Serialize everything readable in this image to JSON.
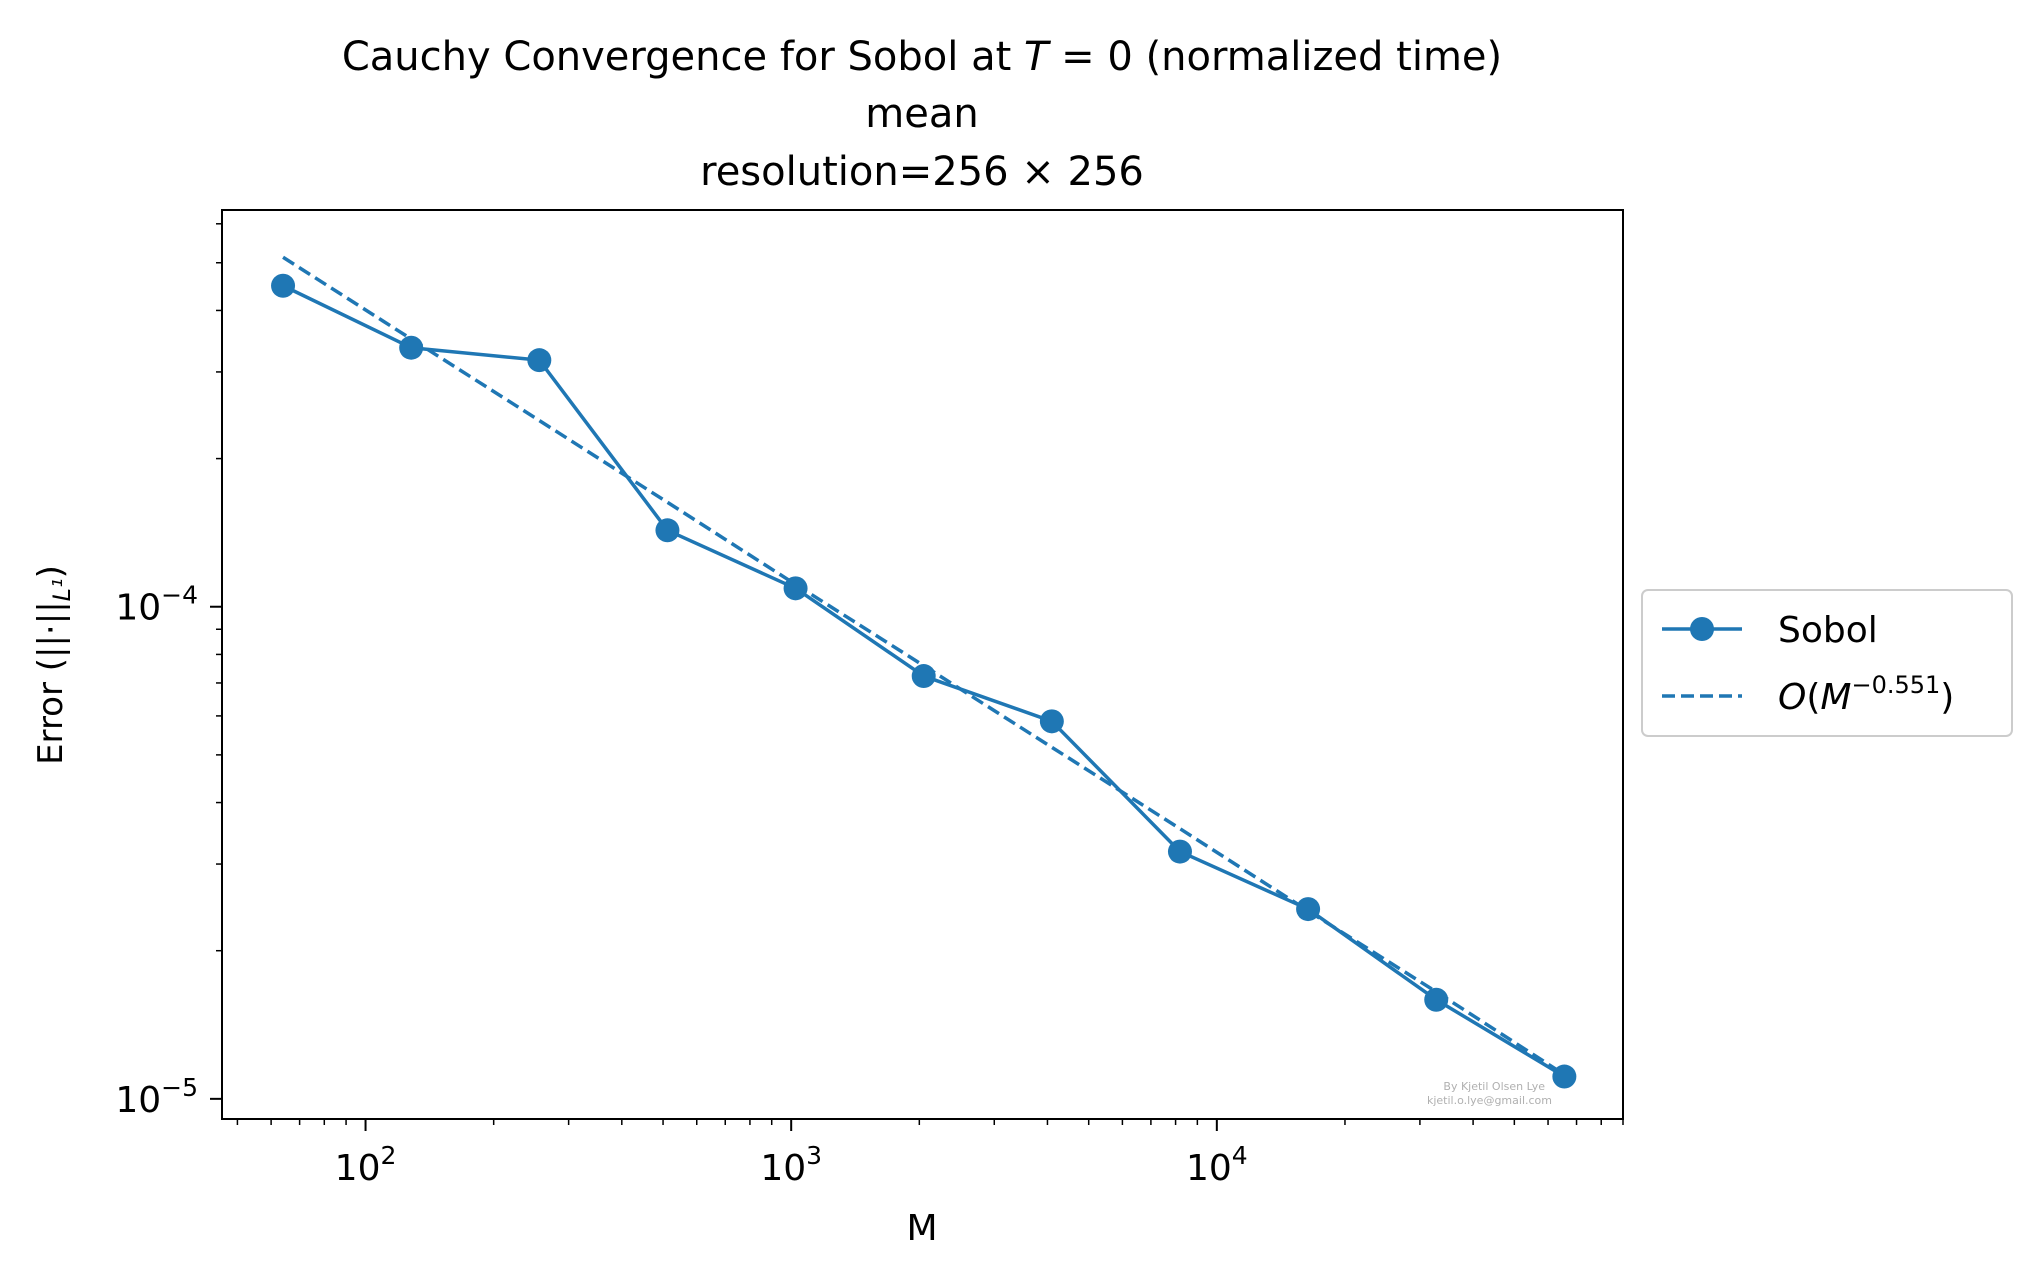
{
  "chart_data": {
    "type": "line",
    "title": {
      "prefix": "Cauchy Convergence for Sobol at ",
      "var": "T",
      "suffix": " = 0 (normalized time)",
      "line2": "mean",
      "line3": "resolution=256 × 256"
    },
    "xlabel": "M",
    "ylabel": "Error (||·||",
    "ylabel_sub": "L¹",
    "ylabel_close": ")",
    "x_scale": "log",
    "y_scale": "log",
    "xlim": [
      46,
      90000
    ],
    "ylim": [
      9.1e-06,
      0.00064
    ],
    "x_ticks": [
      {
        "value": 100,
        "base": "10",
        "exp": "2"
      },
      {
        "value": 1000,
        "base": "10",
        "exp": "3"
      },
      {
        "value": 10000,
        "base": "10",
        "exp": "4"
      }
    ],
    "y_ticks": [
      {
        "value": 1e-05,
        "base": "10",
        "exp": "−5"
      },
      {
        "value": 0.0001,
        "base": "10",
        "exp": "−4"
      }
    ],
    "grid": false,
    "legend_position": "outside-right",
    "series": [
      {
        "name": "Sobol",
        "style": "solid-marker",
        "color": "#1f77b4",
        "x": [
          64,
          128,
          256,
          512,
          1024,
          2048,
          4096,
          8192,
          16384,
          32768,
          65536
        ],
        "y": [
          0.000449,
          0.000336,
          0.000317,
          0.000143,
          0.000109,
          7.23e-05,
          5.85e-05,
          3.18e-05,
          2.43e-05,
          1.59e-05,
          1.11e-05
        ]
      },
      {
        "name": "O(M^{-0.551})",
        "legend_label": {
          "pre": "O(M",
          "sup": "−0.551",
          "post": ")"
        },
        "style": "dashed",
        "color": "#1f77b4",
        "x": [
          64,
          128,
          256,
          512,
          1024,
          2048,
          4096,
          8192,
          16384,
          32768,
          65536
        ],
        "y": [
          0.000513,
          0.00035,
          0.000239,
          0.000163,
          0.000111,
          7.59e-05,
          5.18e-05,
          3.54e-05,
          2.41e-05,
          1.65e-05,
          1.12e-05
        ]
      }
    ],
    "watermark": {
      "line1": "By Kjetil Olsen Lye",
      "line2": "kjetil.o.lye@gmail.com"
    }
  }
}
